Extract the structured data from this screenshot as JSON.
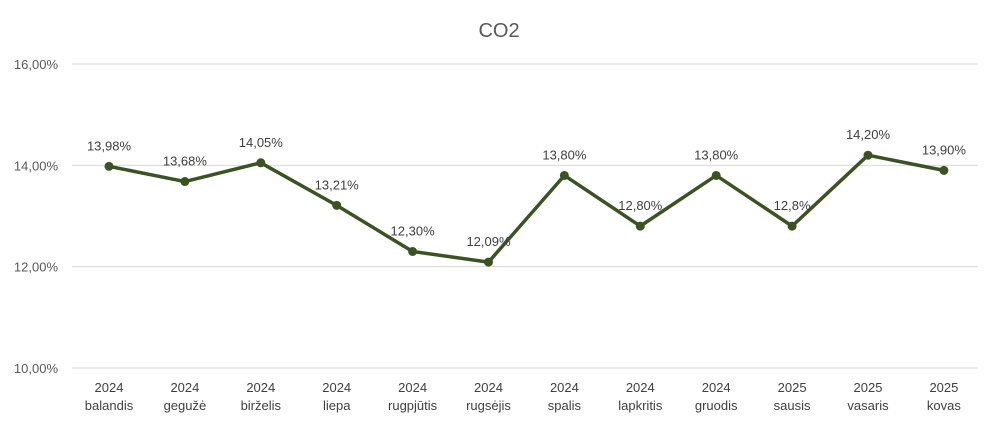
{
  "chart_data": {
    "type": "line",
    "title": "CO2",
    "categories": [
      [
        "2024",
        "balandis"
      ],
      [
        "2024",
        "gegužė"
      ],
      [
        "2024",
        "birželis"
      ],
      [
        "2024",
        "liepa"
      ],
      [
        "2024",
        "rugpjūtis"
      ],
      [
        "2024",
        "rugsėjis"
      ],
      [
        "2024",
        "spalis"
      ],
      [
        "2024",
        "lapkritis"
      ],
      [
        "2024",
        "gruodis"
      ],
      [
        "2025",
        "sausis"
      ],
      [
        "2025",
        "vasaris"
      ],
      [
        "2025",
        "kovas"
      ]
    ],
    "series": [
      {
        "values": [
          13.98,
          13.68,
          14.05,
          13.21,
          12.3,
          12.09,
          13.8,
          12.8,
          13.8,
          12.8,
          14.2,
          13.9
        ],
        "labels": [
          "13,98%",
          "13,68%",
          "14,05%",
          "13,21%",
          "12,30%",
          "12,09%",
          "13,80%",
          "12,80%",
          "13,80%",
          "12,8%",
          "14,20%",
          "13,90%"
        ],
        "color": "#3b5323"
      }
    ],
    "y_ticks": [
      {
        "value": 16,
        "label": "16,00%"
      },
      {
        "value": 14,
        "label": "14,00%"
      },
      {
        "value": 12,
        "label": "12,00%"
      },
      {
        "value": 10,
        "label": "10,00%"
      }
    ],
    "ylim": [
      10,
      16
    ],
    "grid": true,
    "legend": "none"
  }
}
